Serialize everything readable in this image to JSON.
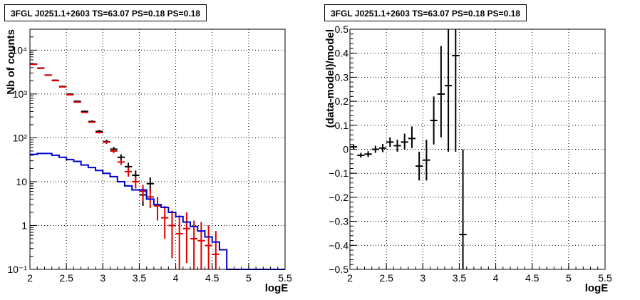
{
  "panels": [
    {
      "title": "3FGL J0251.1+2603 TS=63.07 PS=0.18 PS=0.18",
      "chart_data": {
        "type": "histogram-errorbars",
        "xlabel": "logE",
        "ylabel": "Nb of counts",
        "xlim": [
          2,
          5.5
        ],
        "ylim": [
          0.1,
          30000
        ],
        "yscale": "log",
        "grid": true,
        "xticks": [
          "2",
          "2.5",
          "3",
          "3.5",
          "4",
          "4.5",
          "5",
          "5.5"
        ],
        "yticks": [
          {
            "value": 0.1,
            "label": "10⁻¹"
          },
          {
            "value": 1,
            "label": "1"
          },
          {
            "value": 10,
            "label": "10"
          },
          {
            "value": 100,
            "label": "10²"
          },
          {
            "value": 1000,
            "label": "10³"
          },
          {
            "value": 10000,
            "label": "10⁴"
          }
        ],
        "series": [
          {
            "color": "#000000",
            "style": "errorbars",
            "points": [
              {
                "x": 2.05,
                "y": 4800,
                "lo": 4680,
                "hi": 4920
              },
              {
                "x": 2.15,
                "y": 3900,
                "lo": 3790,
                "hi": 4010
              },
              {
                "x": 2.25,
                "y": 2700,
                "lo": 2610,
                "hi": 2790
              },
              {
                "x": 2.35,
                "y": 2050,
                "lo": 1970,
                "hi": 2130
              },
              {
                "x": 2.45,
                "y": 1480,
                "lo": 1420,
                "hi": 1540
              },
              {
                "x": 2.55,
                "y": 990,
                "lo": 950,
                "hi": 1030
              },
              {
                "x": 2.65,
                "y": 680,
                "lo": 650,
                "hi": 710
              },
              {
                "x": 2.75,
                "y": 400,
                "lo": 380,
                "hi": 420
              },
              {
                "x": 2.85,
                "y": 235,
                "lo": 220,
                "hi": 250
              },
              {
                "x": 2.95,
                "y": 140,
                "lo": 128,
                "hi": 152
              },
              {
                "x": 3.05,
                "y": 82,
                "lo": 73,
                "hi": 91
              },
              {
                "x": 3.15,
                "y": 55,
                "lo": 48,
                "hi": 62
              },
              {
                "x": 3.25,
                "y": 36,
                "lo": 30,
                "hi": 42
              },
              {
                "x": 3.35,
                "y": 22,
                "lo": 17.5,
                "hi": 27
              },
              {
                "x": 3.45,
                "y": 14,
                "lo": 10.5,
                "hi": 18
              },
              {
                "x": 3.55,
                "y": 5.0,
                "lo": 2.8,
                "hi": 7.5
              },
              {
                "x": 3.65,
                "y": 9.0,
                "lo": 6.0,
                "hi": 12.5
              }
            ]
          },
          {
            "color": "#dd0000",
            "style": "errorbars",
            "points": [
              {
                "x": 2.05,
                "y": 4750,
                "lo": 4680,
                "hi": 4820
              },
              {
                "x": 2.15,
                "y": 3850,
                "lo": 3780,
                "hi": 3920
              },
              {
                "x": 2.25,
                "y": 2680,
                "lo": 2630,
                "hi": 2730
              },
              {
                "x": 2.35,
                "y": 2020,
                "lo": 1980,
                "hi": 2060
              },
              {
                "x": 2.45,
                "y": 1450,
                "lo": 1420,
                "hi": 1480
              },
              {
                "x": 2.55,
                "y": 960,
                "lo": 940,
                "hi": 980
              },
              {
                "x": 2.65,
                "y": 650,
                "lo": 635,
                "hi": 665
              },
              {
                "x": 2.75,
                "y": 380,
                "lo": 370,
                "hi": 390
              },
              {
                "x": 2.85,
                "y": 228,
                "lo": 220,
                "hi": 236
              },
              {
                "x": 2.95,
                "y": 132,
                "lo": 126,
                "hi": 138
              },
              {
                "x": 3.05,
                "y": 80,
                "lo": 75,
                "hi": 85
              },
              {
                "x": 3.15,
                "y": 50,
                "lo": 45,
                "hi": 55
              },
              {
                "x": 3.25,
                "y": 28,
                "lo": 24,
                "hi": 32
              },
              {
                "x": 3.35,
                "y": 17,
                "lo": 13,
                "hi": 21
              },
              {
                "x": 3.45,
                "y": 10,
                "lo": 7,
                "hi": 13
              },
              {
                "x": 3.55,
                "y": 6.0,
                "lo": 3.5,
                "hi": 8.5
              },
              {
                "x": 3.65,
                "y": 4.5,
                "lo": 2.5,
                "hi": 7.0
              },
              {
                "x": 3.75,
                "y": 2.8,
                "lo": 1.3,
                "hi": 4.5
              },
              {
                "x": 3.85,
                "y": 1.5,
                "lo": 0.5,
                "hi": 2.8
              },
              {
                "x": 3.95,
                "y": 1.0,
                "lo": 0.18,
                "hi": 2.2
              },
              {
                "x": 4.05,
                "y": 0.65,
                "lo": 0.1,
                "hi": 1.7
              },
              {
                "x": 4.15,
                "y": 0.85,
                "lo": 0.14,
                "hi": 2.0
              },
              {
                "x": 4.25,
                "y": 0.5,
                "lo": 0.1,
                "hi": 1.3
              },
              {
                "x": 4.35,
                "y": 0.45,
                "lo": 0.1,
                "hi": 1.2
              },
              {
                "x": 4.45,
                "y": 0.35,
                "lo": 0.1,
                "hi": 1.0
              },
              {
                "x": 4.55,
                "y": 0.22,
                "lo": 0.1,
                "hi": 0.75
              }
            ]
          },
          {
            "color": "#0000cc",
            "style": "step",
            "edges": [
              2.0,
              2.1,
              2.2,
              2.3,
              2.4,
              2.5,
              2.6,
              2.7,
              2.8,
              2.9,
              3.0,
              3.1,
              3.2,
              3.3,
              3.4,
              3.5,
              3.6,
              3.7,
              3.8,
              3.9,
              4.0,
              4.1,
              4.2,
              4.3,
              4.4,
              4.5,
              4.6,
              4.7,
              5.5
            ],
            "values": [
              42,
              44,
              44,
              40,
              36,
              32,
              29,
              24,
              21,
              18,
              15.5,
              13,
              10,
              8,
              6.5,
              6.5,
              4.0,
              3.0,
              2.6,
              2.0,
              1.6,
              1.2,
              0.95,
              0.75,
              0.55,
              0.42,
              0.28,
              0.1
            ]
          }
        ]
      }
    },
    {
      "title": "3FGL J0251.1+2603 TS=63.07 PS=0.18 PS=0.18",
      "chart_data": {
        "type": "scatter-errorbars",
        "xlabel": "logE",
        "ylabel": "(data-model)/model",
        "xlim": [
          2,
          5.5
        ],
        "ylim": [
          -0.5,
          0.5
        ],
        "grid": true,
        "xticks": [
          "2",
          "2.5",
          "3",
          "3.5",
          "4",
          "4.5",
          "5",
          "5.5"
        ],
        "yticks": [
          "−0.5",
          "−0.4",
          "−0.3",
          "−0.2",
          "−0.1",
          "0",
          "0.1",
          "0.2",
          "0.3",
          "0.4",
          "0.5"
        ],
        "series": [
          {
            "color": "#000000",
            "points": [
              {
                "x": 2.05,
                "y": 0.01,
                "lo": 0.0,
                "hi": 0.02
              },
              {
                "x": 2.15,
                "y": -0.025,
                "lo": -0.035,
                "hi": -0.015
              },
              {
                "x": 2.25,
                "y": -0.02,
                "lo": -0.032,
                "hi": -0.008
              },
              {
                "x": 2.35,
                "y": 0.0,
                "lo": -0.015,
                "hi": 0.015
              },
              {
                "x": 2.45,
                "y": 0.005,
                "lo": -0.012,
                "hi": 0.022
              },
              {
                "x": 2.55,
                "y": 0.03,
                "lo": 0.01,
                "hi": 0.05
              },
              {
                "x": 2.65,
                "y": 0.015,
                "lo": -0.01,
                "hi": 0.04
              },
              {
                "x": 2.75,
                "y": 0.03,
                "lo": 0.0,
                "hi": 0.065
              },
              {
                "x": 2.85,
                "y": 0.045,
                "lo": 0.005,
                "hi": 0.095
              },
              {
                "x": 2.95,
                "y": -0.07,
                "lo": -0.13,
                "hi": -0.01
              },
              {
                "x": 3.05,
                "y": -0.045,
                "lo": -0.13,
                "hi": 0.04
              },
              {
                "x": 3.15,
                "y": 0.12,
                "lo": 0.02,
                "hi": 0.22
              },
              {
                "x": 3.25,
                "y": 0.23,
                "lo": 0.05,
                "hi": 0.43
              },
              {
                "x": 3.35,
                "y": 0.265,
                "lo": -0.01,
                "hi": 0.5
              },
              {
                "x": 3.45,
                "y": 0.39,
                "lo": -0.01,
                "hi": 0.5
              },
              {
                "x": 3.55,
                "y": -0.355,
                "lo": -0.5,
                "hi": 0.0
              }
            ]
          }
        ]
      }
    }
  ]
}
